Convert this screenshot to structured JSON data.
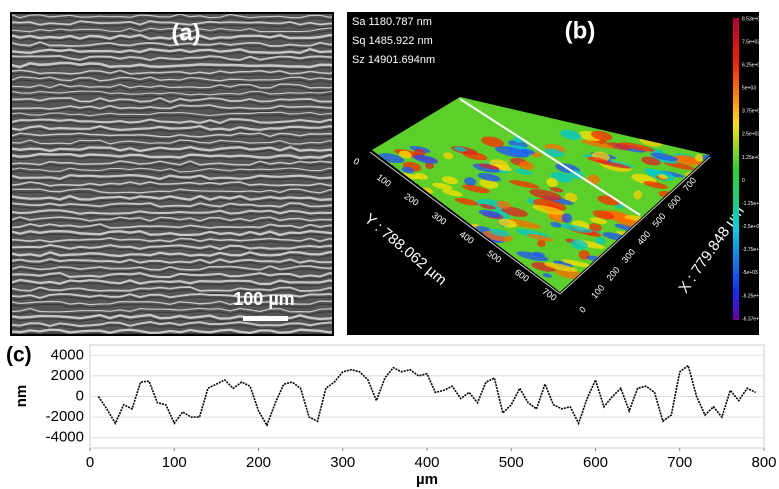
{
  "panel_a": {
    "label": "(a)",
    "scale_bar": "100 µm"
  },
  "panel_b": {
    "label": "(b)",
    "stats": [
      "Sa 1180.787  nm",
      "Sq 1485.922  nm",
      "Sz 14901.694nm"
    ],
    "y_axis_label": "Y : 788.062 µm",
    "x_axis_label": "X : 779.848 µm",
    "y_axis_ticks": [
      0,
      100,
      200,
      300,
      400,
      500,
      600,
      700
    ],
    "x_axis_ticks": [
      0,
      100,
      200,
      300,
      400,
      500,
      600,
      700
    ],
    "colorbar_labels": [
      "8.53e+03",
      "7.5e+03",
      "6.25e+03",
      "5e+03",
      "3.75e+03",
      "2.5e+03",
      "1.25e+03",
      "0",
      "-1.25e+03",
      "-2.5e+03",
      "-3.75e+03",
      "-5e+03",
      "-6.25e+03",
      "-6.37e+03"
    ]
  },
  "chart_data": {
    "type": "line",
    "panel_label": "(c)",
    "x_label": "µm",
    "y_label": "nm",
    "color": "#000000",
    "x": [
      10,
      20,
      30,
      40,
      50,
      60,
      70,
      80,
      90,
      100,
      110,
      120,
      130,
      140,
      150,
      160,
      170,
      180,
      190,
      200,
      210,
      220,
      230,
      240,
      250,
      260,
      270,
      280,
      290,
      300,
      310,
      320,
      330,
      340,
      350,
      360,
      370,
      380,
      390,
      400,
      410,
      420,
      430,
      440,
      450,
      460,
      470,
      480,
      490,
      500,
      510,
      520,
      530,
      540,
      550,
      560,
      570,
      580,
      590,
      600,
      610,
      620,
      630,
      640,
      650,
      660,
      670,
      680,
      690,
      700,
      710,
      720,
      730,
      740,
      750,
      760,
      770,
      780,
      790
    ],
    "values": [
      0,
      -1200,
      -2600,
      -800,
      -1200,
      1400,
      1500,
      -600,
      -800,
      -2600,
      -1500,
      -2000,
      -2000,
      800,
      1200,
      1600,
      800,
      1400,
      1000,
      -1400,
      -2800,
      -600,
      1200,
      1400,
      800,
      -2000,
      -2400,
      800,
      1400,
      2400,
      2600,
      2400,
      1600,
      -400,
      1800,
      2800,
      2400,
      2600,
      2000,
      2200,
      400,
      600,
      1000,
      -200,
      400,
      -600,
      1400,
      1800,
      -1600,
      -800,
      800,
      -600,
      -1200,
      1200,
      -800,
      -1200,
      -1000,
      -2600,
      -200,
      1600,
      -1000,
      0,
      800,
      -1400,
      800,
      1000,
      400,
      -2400,
      -1800,
      2400,
      3000,
      0,
      -1800,
      -1000,
      -2000,
      600,
      -400,
      800,
      400
    ],
    "xlim": [
      0,
      800
    ],
    "ylim": [
      -5000,
      5000
    ],
    "xticks": [
      0,
      100,
      200,
      300,
      400,
      500,
      600,
      700,
      800
    ],
    "yticks": [
      -4000,
      -2000,
      0,
      2000,
      4000
    ],
    "grid": true
  }
}
